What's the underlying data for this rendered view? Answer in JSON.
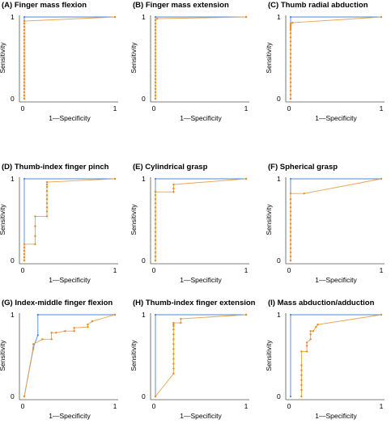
{
  "chart_data": [
    {
      "type": "line",
      "title": "(A) Finger mass flexion",
      "xlabel": "1—Specificity",
      "ylabel": "Sensitivity",
      "xlim": [
        0,
        1
      ],
      "ylim": [
        0,
        1
      ],
      "xticks": [
        "0",
        "1"
      ],
      "yticks": [
        "0",
        "1"
      ],
      "series": [
        {
          "x": [
            0,
            0,
            1
          ],
          "y": [
            0,
            1,
            1
          ]
        },
        {
          "x": [
            0,
            0,
            0,
            0,
            0,
            0,
            0,
            0,
            0,
            0,
            0,
            0,
            0,
            0,
            0,
            0,
            0,
            0,
            0,
            0,
            0,
            0,
            0,
            0,
            0,
            0,
            1
          ],
          "y": [
            0,
            0.04,
            0.08,
            0.12,
            0.16,
            0.2,
            0.24,
            0.28,
            0.32,
            0.36,
            0.4,
            0.44,
            0.48,
            0.52,
            0.56,
            0.6,
            0.64,
            0.68,
            0.72,
            0.76,
            0.8,
            0.84,
            0.88,
            0.92,
            0.95,
            0.95,
            1
          ]
        }
      ]
    },
    {
      "type": "line",
      "title": "(B) Finger mass extension",
      "xlabel": "1—Specificity",
      "ylabel": "Sensitivity",
      "xlim": [
        0,
        1
      ],
      "ylim": [
        0,
        1
      ],
      "xticks": [
        "0",
        "1"
      ],
      "yticks": [
        "0",
        "1"
      ],
      "series": [
        {
          "x": [
            0,
            0,
            1
          ],
          "y": [
            0,
            1,
            1
          ]
        },
        {
          "x": [
            0,
            0,
            0,
            0,
            0,
            0,
            0,
            0,
            0,
            0,
            0,
            0,
            0,
            0,
            0,
            0,
            0,
            0,
            0,
            0,
            0,
            0,
            0,
            0,
            0,
            0.02,
            1
          ],
          "y": [
            0,
            0.04,
            0.08,
            0.12,
            0.16,
            0.2,
            0.24,
            0.28,
            0.32,
            0.36,
            0.4,
            0.44,
            0.48,
            0.52,
            0.56,
            0.6,
            0.64,
            0.68,
            0.72,
            0.76,
            0.8,
            0.84,
            0.88,
            0.92,
            0.96,
            0.98,
            1
          ]
        }
      ]
    },
    {
      "type": "line",
      "title": "(C) Thumb radial abduction",
      "xlabel": "1—Specificity",
      "ylabel": "Sensitivity",
      "xlim": [
        0,
        1
      ],
      "ylim": [
        0,
        1
      ],
      "xticks": [
        "0",
        "1"
      ],
      "yticks": [
        "0",
        "1"
      ],
      "series": [
        {
          "x": [
            0,
            0,
            1
          ],
          "y": [
            0,
            1,
            1
          ]
        },
        {
          "x": [
            0,
            0,
            0,
            0,
            0,
            0,
            0,
            0,
            0,
            0,
            0,
            0,
            0,
            0,
            0,
            0,
            0,
            0,
            0,
            0,
            0,
            0,
            0.02,
            1
          ],
          "y": [
            0,
            0.05,
            0.1,
            0.15,
            0.2,
            0.25,
            0.3,
            0.35,
            0.4,
            0.45,
            0.5,
            0.55,
            0.6,
            0.65,
            0.7,
            0.75,
            0.8,
            0.84,
            0.86,
            0.88,
            0.9,
            0.92,
            0.93,
            1
          ]
        }
      ]
    },
    {
      "type": "line",
      "title": "(D) Thumb-index finger pinch",
      "xlabel": "1—Specificity",
      "ylabel": "Sensitivity",
      "xlim": [
        0,
        1
      ],
      "ylim": [
        0,
        1
      ],
      "xticks": [
        "0",
        "1"
      ],
      "yticks": [
        "0",
        "1"
      ],
      "series": [
        {
          "x": [
            0,
            0,
            1
          ],
          "y": [
            0,
            1,
            1
          ]
        },
        {
          "x": [
            0,
            0,
            0,
            0,
            0,
            0,
            0.12,
            0.12,
            0.12,
            0.12,
            0.25,
            0.25,
            0.25,
            0.25,
            0.25,
            0.25,
            0.25,
            0.25,
            0.25,
            0.25,
            1
          ],
          "y": [
            0,
            0.04,
            0.08,
            0.12,
            0.16,
            0.2,
            0.2,
            0.3,
            0.42,
            0.54,
            0.54,
            0.6,
            0.65,
            0.7,
            0.75,
            0.8,
            0.85,
            0.9,
            0.93,
            0.96,
            1
          ]
        }
      ]
    },
    {
      "type": "line",
      "title": "(E) Cylindrical grasp",
      "xlabel": "1—Specificity",
      "ylabel": "Sensitivity",
      "xlim": [
        0,
        1
      ],
      "ylim": [
        0,
        1
      ],
      "xticks": [
        "0",
        "1"
      ],
      "yticks": [
        "0",
        "1"
      ],
      "series": [
        {
          "x": [
            0,
            0,
            1
          ],
          "y": [
            0,
            1,
            1
          ]
        },
        {
          "x": [
            0,
            0,
            0,
            0,
            0,
            0,
            0,
            0,
            0,
            0,
            0,
            0,
            0,
            0,
            0,
            0,
            0,
            0,
            0,
            0.2,
            0.2,
            0.2,
            1
          ],
          "y": [
            0,
            0.05,
            0.1,
            0.15,
            0.2,
            0.25,
            0.3,
            0.35,
            0.4,
            0.45,
            0.5,
            0.55,
            0.6,
            0.65,
            0.7,
            0.75,
            0.8,
            0.84,
            0.84,
            0.84,
            0.88,
            0.93,
            1
          ]
        }
      ]
    },
    {
      "type": "line",
      "title": "(F) Spherical grasp",
      "xlabel": "1—Specificity",
      "ylabel": "Sensitivity",
      "xlim": [
        0,
        1
      ],
      "ylim": [
        0,
        1
      ],
      "xticks": [
        "0",
        "1"
      ],
      "yticks": [
        "0",
        "1"
      ],
      "series": [
        {
          "x": [
            0,
            0,
            1
          ],
          "y": [
            0,
            1,
            1
          ]
        },
        {
          "x": [
            0,
            0,
            0,
            0,
            0,
            0,
            0,
            0,
            0,
            0,
            0,
            0,
            0,
            0,
            0,
            0,
            0,
            0.15,
            1
          ],
          "y": [
            0,
            0.05,
            0.1,
            0.15,
            0.2,
            0.25,
            0.3,
            0.35,
            0.4,
            0.45,
            0.5,
            0.55,
            0.6,
            0.65,
            0.7,
            0.75,
            0.82,
            0.82,
            1
          ]
        }
      ]
    },
    {
      "type": "line",
      "title": "(G) Index-middle finger flexion",
      "xlabel": "1—Specificity",
      "ylabel": "Sensitivity",
      "xlim": [
        0,
        1
      ],
      "ylim": [
        0,
        1
      ],
      "xticks": [
        "0",
        "1"
      ],
      "yticks": [
        "0",
        "1"
      ],
      "series": [
        {
          "x": [
            0,
            0.1,
            0.15,
            0.15,
            1
          ],
          "y": [
            0,
            0.6,
            0.75,
            1,
            1
          ]
        },
        {
          "x": [
            0,
            0.1,
            0.1,
            0.2,
            0.3,
            0.3,
            0.35,
            0.45,
            0.55,
            0.55,
            0.7,
            0.7,
            0.75,
            1
          ],
          "y": [
            0,
            0.58,
            0.64,
            0.7,
            0.7,
            0.78,
            0.78,
            0.8,
            0.8,
            0.84,
            0.85,
            0.88,
            0.92,
            1
          ]
        }
      ]
    },
    {
      "type": "line",
      "title": "(H) Thumb-index finger extension",
      "xlabel": "1—Specificity",
      "ylabel": "Sensitivity",
      "xlim": [
        0,
        1
      ],
      "ylim": [
        0,
        1
      ],
      "xticks": [
        "0",
        "1"
      ],
      "yticks": [
        "0",
        "1"
      ],
      "series": [
        {
          "x": [
            0,
            0,
            1
          ],
          "y": [
            0,
            1,
            1
          ]
        },
        {
          "x": [
            0,
            0.2,
            0.2,
            0.2,
            0.2,
            0.2,
            0.2,
            0.2,
            0.2,
            0.2,
            0.2,
            0.2,
            0.2,
            0.2,
            0.28,
            0.28,
            1
          ],
          "y": [
            0,
            0.28,
            0.34,
            0.4,
            0.46,
            0.52,
            0.58,
            0.64,
            0.7,
            0.76,
            0.82,
            0.86,
            0.88,
            0.9,
            0.9,
            0.95,
            1
          ]
        }
      ]
    },
    {
      "type": "line",
      "title": "(I) Mass abduction/adduction",
      "xlabel": "1—Specificity",
      "ylabel": "Sensitivity",
      "xlim": [
        0,
        1
      ],
      "ylim": [
        0,
        1
      ],
      "xticks": [
        "0",
        "1"
      ],
      "yticks": [
        "0",
        "1"
      ],
      "series": [
        {
          "x": [
            0,
            0,
            1
          ],
          "y": [
            0,
            1,
            1
          ]
        },
        {
          "x": [
            0.12,
            0.12,
            0.12,
            0.12,
            0.12,
            0.12,
            0.12,
            0.12,
            0.18,
            0.18,
            0.18,
            0.22,
            0.22,
            0.22,
            0.25,
            0.28,
            0.3,
            1
          ],
          "y": [
            0,
            0.08,
            0.14,
            0.2,
            0.26,
            0.32,
            0.38,
            0.55,
            0.55,
            0.62,
            0.66,
            0.7,
            0.76,
            0.8,
            0.8,
            0.85,
            0.88,
            1
          ]
        }
      ]
    }
  ]
}
